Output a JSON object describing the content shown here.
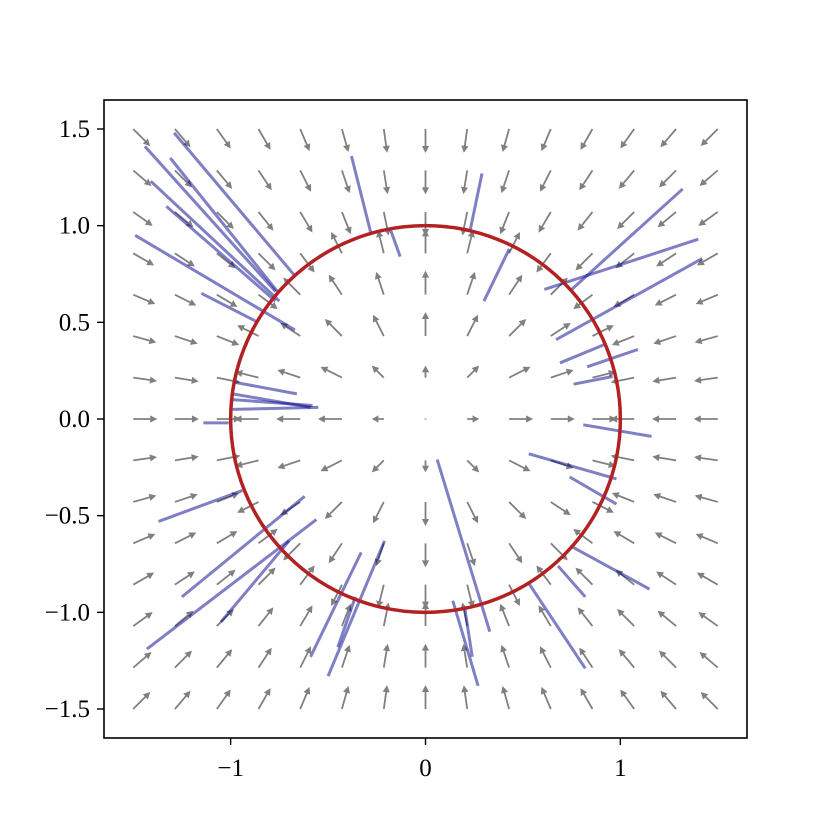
{
  "chart_data": {
    "type": "quiver",
    "x": [
      -1.5,
      -1.286,
      -1.071,
      -0.857,
      -0.643,
      -0.429,
      -0.214,
      0,
      0.214,
      0.429,
      0.643,
      0.857,
      1.071,
      1.286,
      1.5
    ],
    "y": [
      -1.5,
      -1.286,
      -1.071,
      -0.857,
      -0.643,
      -0.429,
      -0.214,
      0,
      0.214,
      0.429,
      0.643,
      0.857,
      1.071,
      1.286,
      1.5
    ],
    "u": [
      [
        0.71,
        0.65,
        0.58,
        0.5,
        0.39,
        0.27,
        0.14,
        0,
        -0.14,
        -0.27,
        -0.39,
        -0.5,
        -0.58,
        -0.65,
        -0.71
      ],
      [
        0.76,
        0.71,
        0.64,
        0.55,
        0.45,
        0.32,
        0.16,
        0,
        -0.16,
        -0.32,
        -0.45,
        -0.55,
        -0.64,
        -0.71,
        -0.76
      ],
      [
        0.81,
        0.77,
        0.71,
        0.62,
        0.51,
        0.37,
        0.2,
        0,
        -0.2,
        -0.37,
        -0.51,
        -0.62,
        -0.71,
        -0.77,
        -0.81
      ],
      [
        0.87,
        0.83,
        0.78,
        0.71,
        0.6,
        -0.45,
        -0.24,
        0,
        0.24,
        0.45,
        -0.6,
        -0.71,
        -0.78,
        -0.83,
        -0.87
      ],
      [
        0.92,
        0.89,
        0.86,
        0.8,
        -0.71,
        -0.55,
        -0.32,
        0,
        0.32,
        0.55,
        0.71,
        -0.8,
        -0.86,
        -0.89,
        -0.92
      ],
      [
        0.96,
        0.95,
        0.93,
        -0.89,
        -0.83,
        -0.71,
        -0.45,
        0,
        0.45,
        0.71,
        0.83,
        0.89,
        -0.93,
        -0.95,
        -0.96
      ],
      [
        0.99,
        0.99,
        0.98,
        -0.97,
        -0.95,
        -0.89,
        -0.5,
        0,
        0.5,
        0.89,
        0.95,
        0.97,
        -0.98,
        -0.99,
        -0.99
      ],
      [
        1,
        1,
        1,
        -1,
        -1,
        -1,
        -0.5,
        0,
        0.5,
        1,
        1,
        1,
        -1,
        -1,
        -1
      ],
      [
        0.99,
        0.99,
        0.98,
        -0.97,
        -0.95,
        -0.89,
        -0.5,
        0,
        0.5,
        0.89,
        0.95,
        0.97,
        -0.98,
        -0.99,
        -0.99
      ],
      [
        0.96,
        0.95,
        0.93,
        -0.89,
        -0.83,
        -0.71,
        -0.45,
        0,
        0.45,
        0.71,
        0.83,
        0.89,
        -0.93,
        -0.95,
        -0.96
      ],
      [
        0.92,
        0.89,
        0.86,
        0.8,
        -0.71,
        -0.55,
        -0.32,
        0,
        0.32,
        0.55,
        0.71,
        -0.8,
        -0.86,
        -0.89,
        -0.92
      ],
      [
        0.87,
        0.83,
        0.78,
        0.71,
        0.6,
        -0.45,
        -0.24,
        0,
        0.24,
        0.45,
        -0.6,
        -0.71,
        -0.78,
        -0.83,
        -0.87
      ],
      [
        0.81,
        0.77,
        0.71,
        0.62,
        0.51,
        0.37,
        0.2,
        0,
        -0.2,
        -0.37,
        -0.51,
        -0.62,
        -0.71,
        -0.77,
        -0.81
      ],
      [
        0.76,
        0.71,
        0.64,
        0.55,
        0.45,
        0.32,
        0.16,
        0,
        -0.16,
        -0.32,
        -0.45,
        -0.55,
        -0.64,
        -0.71,
        -0.76
      ],
      [
        0.71,
        0.65,
        0.58,
        0.5,
        0.39,
        0.27,
        0.14,
        0,
        -0.14,
        -0.27,
        -0.39,
        -0.5,
        -0.58,
        -0.65,
        -0.71
      ]
    ],
    "v": [
      [
        0.71,
        0.76,
        0.81,
        0.87,
        0.92,
        0.96,
        0.99,
        1,
        0.99,
        0.96,
        0.92,
        0.87,
        0.81,
        0.76,
        0.71
      ],
      [
        0.65,
        0.71,
        0.77,
        0.83,
        0.89,
        0.95,
        0.99,
        1,
        0.99,
        0.95,
        0.89,
        0.83,
        0.77,
        0.71,
        0.65
      ],
      [
        0.58,
        0.64,
        0.71,
        0.78,
        0.86,
        0.93,
        0.98,
        1,
        0.98,
        0.93,
        0.86,
        0.78,
        0.71,
        0.64,
        0.58
      ],
      [
        0.5,
        0.55,
        0.62,
        0.71,
        0.8,
        -0.89,
        -0.97,
        -1,
        -0.97,
        -0.89,
        0.8,
        0.71,
        0.62,
        0.55,
        0.5
      ],
      [
        0.39,
        0.45,
        0.51,
        0.6,
        -0.71,
        -0.83,
        -0.95,
        -1,
        -0.95,
        -0.83,
        -0.71,
        0.6,
        0.51,
        0.45,
        0.39
      ],
      [
        0.27,
        0.32,
        0.37,
        -0.45,
        -0.55,
        -0.71,
        -0.89,
        -1,
        -0.89,
        -0.71,
        -0.55,
        -0.45,
        0.37,
        0.32,
        0.27
      ],
      [
        0.14,
        0.16,
        0.2,
        -0.24,
        -0.32,
        -0.45,
        -0.5,
        -0.5,
        -0.5,
        -0.45,
        -0.32,
        -0.24,
        0.2,
        0.16,
        0.14
      ],
      [
        0,
        0,
        0,
        0,
        0,
        0,
        0,
        0,
        0,
        0,
        0,
        0,
        0,
        0,
        0
      ],
      [
        -0.14,
        -0.16,
        -0.2,
        0.24,
        0.32,
        0.45,
        0.5,
        0.5,
        0.5,
        0.45,
        0.32,
        0.24,
        -0.2,
        -0.16,
        -0.14
      ],
      [
        -0.27,
        -0.32,
        -0.37,
        0.45,
        0.55,
        0.71,
        0.89,
        1,
        0.89,
        0.71,
        0.55,
        0.45,
        -0.37,
        -0.32,
        -0.27
      ],
      [
        -0.39,
        -0.45,
        -0.51,
        -0.6,
        0.71,
        0.83,
        0.95,
        1,
        0.95,
        0.83,
        0.71,
        -0.6,
        -0.51,
        -0.45,
        -0.39
      ],
      [
        -0.5,
        -0.55,
        -0.62,
        -0.71,
        -0.8,
        0.89,
        0.97,
        1,
        0.97,
        0.89,
        -0.8,
        -0.71,
        -0.62,
        -0.55,
        -0.5
      ],
      [
        -0.58,
        -0.64,
        -0.71,
        -0.78,
        -0.86,
        -0.93,
        -0.98,
        -1,
        -0.98,
        -0.93,
        -0.86,
        -0.78,
        -0.71,
        -0.64,
        -0.58
      ],
      [
        -0.65,
        -0.71,
        -0.77,
        -0.83,
        -0.89,
        -0.95,
        -0.99,
        -1,
        -0.99,
        -0.95,
        -0.89,
        -0.83,
        -0.77,
        -0.71,
        -0.65
      ],
      [
        -0.71,
        -0.76,
        -0.81,
        -0.87,
        -0.92,
        -0.96,
        -0.99,
        -1,
        -0.99,
        -0.96,
        -0.92,
        -0.87,
        -0.81,
        -0.76,
        -0.71
      ]
    ],
    "arrow_color": "#808080",
    "segment_color": "#00008b",
    "segments": [
      {
        "x": [
          -1.44,
          -0.77
        ],
        "y": [
          1.41,
          0.66
        ]
      },
      {
        "x": [
          -1.29,
          -0.67
        ],
        "y": [
          1.48,
          0.74
        ]
      },
      {
        "x": [
          -1.41,
          -0.75
        ],
        "y": [
          1.23,
          0.61
        ]
      },
      {
        "x": [
          -1.31,
          -0.76
        ],
        "y": [
          1.35,
          0.66
        ]
      },
      {
        "x": [
          -1.33,
          -0.77
        ],
        "y": [
          1.1,
          0.61
        ]
      },
      {
        "x": [
          -1.49,
          -0.67
        ],
        "y": [
          0.95,
          0.46
        ]
      },
      {
        "x": [
          -1.15,
          -0.86
        ],
        "y": [
          0.65,
          0.5
        ]
      },
      {
        "x": [
          -0.38,
          -0.28
        ],
        "y": [
          1.36,
          0.96
        ]
      },
      {
        "x": [
          -0.18,
          -0.13
        ],
        "y": [
          0.98,
          0.84
        ]
      },
      {
        "x": [
          0.29,
          0.23
        ],
        "y": [
          1.27,
          0.98
        ]
      },
      {
        "x": [
          0.43,
          0.3
        ],
        "y": [
          0.88,
          0.61
        ]
      },
      {
        "x": [
          1.32,
          0.75
        ],
        "y": [
          1.19,
          0.67
        ]
      },
      {
        "x": [
          1.4,
          0.61
        ],
        "y": [
          0.93,
          0.67
        ]
      },
      {
        "x": [
          1.42,
          0.67
        ],
        "y": [
          0.83,
          0.41
        ]
      },
      {
        "x": [
          0.93,
          0.69
        ],
        "y": [
          0.39,
          0.29
        ]
      },
      {
        "x": [
          1.09,
          0.83
        ],
        "y": [
          0.36,
          0.27
        ]
      },
      {
        "x": [
          0.96,
          0.76
        ],
        "y": [
          0.22,
          0.18
        ]
      },
      {
        "x": [
          -0.98,
          -0.66
        ],
        "y": [
          0.19,
          0.13
        ]
      },
      {
        "x": [
          -0.99,
          -0.58
        ],
        "y": [
          0.1,
          0.07
        ]
      },
      {
        "x": [
          -0.99,
          -0.59
        ],
        "y": [
          0.13,
          0.06
        ]
      },
      {
        "x": [
          -0.99,
          -0.55
        ],
        "y": [
          0.05,
          0.06
        ]
      },
      {
        "x": [
          -1.14,
          -1.01
        ],
        "y": [
          -0.02,
          -0.02
        ]
      },
      {
        "x": [
          0.81,
          1.16
        ],
        "y": [
          -0.03,
          -0.09
        ]
      },
      {
        "x": [
          0.53,
          0.98
        ],
        "y": [
          -0.18,
          -0.31
        ]
      },
      {
        "x": [
          0.74,
          0.98
        ],
        "y": [
          -0.3,
          -0.44
        ]
      },
      {
        "x": [
          -0.94,
          -1.37
        ],
        "y": [
          -0.37,
          -0.53
        ]
      },
      {
        "x": [
          -0.62,
          -1.25
        ],
        "y": [
          -0.4,
          -0.92
        ]
      },
      {
        "x": [
          -0.56,
          -1.43
        ],
        "y": [
          -0.52,
          -1.19
        ]
      },
      {
        "x": [
          -0.7,
          -1.05
        ],
        "y": [
          -0.63,
          -1.05
        ]
      },
      {
        "x": [
          -0.33,
          -0.59
        ],
        "y": [
          -0.69,
          -1.23
        ]
      },
      {
        "x": [
          -0.21,
          -0.5
        ],
        "y": [
          -0.63,
          -1.33
        ]
      },
      {
        "x": [
          0.06,
          0.33
        ],
        "y": [
          -0.21,
          -1.1
        ]
      },
      {
        "x": [
          0.75,
          1.15
        ],
        "y": [
          -0.66,
          -0.88
        ]
      },
      {
        "x": [
          0.68,
          0.82
        ],
        "y": [
          -0.76,
          -0.92
        ]
      },
      {
        "x": [
          0.53,
          0.82
        ],
        "y": [
          -0.85,
          -1.29
        ]
      },
      {
        "x": [
          0.14,
          0.27
        ],
        "y": [
          -0.94,
          -1.38
        ]
      },
      {
        "x": [
          0.2,
          0.24
        ],
        "y": [
          -0.97,
          -1.23
        ]
      },
      {
        "x": [
          -0.36,
          -0.45
        ],
        "y": [
          -0.92,
          -1.18
        ]
      }
    ],
    "circle": {
      "center": [
        0,
        0
      ],
      "radius": 1,
      "color": "#b22222"
    },
    "xlim": [
      -1.65,
      1.65
    ],
    "ylim": [
      -1.65,
      1.65
    ],
    "xticks": [
      {
        "value": -1,
        "label": "−1"
      },
      0,
      1
    ],
    "yticks": [
      {
        "value": -1.5,
        "label": "−1.5"
      },
      {
        "value": -1,
        "label": "−1.0"
      },
      {
        "value": -0.5,
        "label": "−0.5"
      },
      {
        "value": 0,
        "label": "0.0"
      },
      0.5,
      {
        "value": 1,
        "label": "1.0"
      },
      1.5
    ]
  }
}
